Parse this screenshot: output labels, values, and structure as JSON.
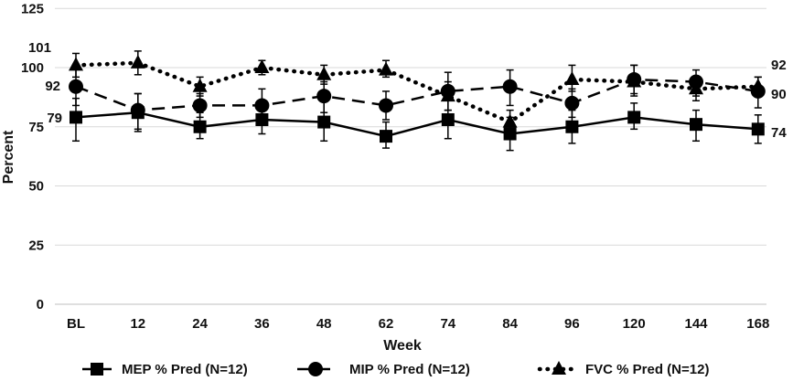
{
  "chart_data": {
    "type": "line",
    "categories": [
      "BL",
      "12",
      "24",
      "36",
      "48",
      "62",
      "74",
      "84",
      "96",
      "120",
      "144",
      "168"
    ],
    "xlabel": "Week",
    "ylabel": "Percent",
    "ylim": [
      0,
      125
    ],
    "yticks": [
      0,
      25,
      50,
      75,
      100,
      125
    ],
    "grid": true,
    "legend_position": "bottom",
    "series": [
      {
        "name": "MEP % Pred (N=12)",
        "marker": "square",
        "line_style": "solid",
        "values": [
          79,
          81,
          75,
          78,
          77,
          71,
          78,
          72,
          75,
          79,
          76,
          74
        ],
        "err_low": [
          69,
          73,
          70,
          72,
          69,
          66,
          70,
          65,
          68,
          74,
          69,
          68
        ],
        "err_high": [
          87,
          89,
          81,
          84,
          86,
          77,
          86,
          79,
          82,
          85,
          82,
          80
        ]
      },
      {
        "name": "MIP  % Pred (N=12)",
        "marker": "circle",
        "line_style": "dashed",
        "values": [
          92,
          82,
          84,
          84,
          88,
          84,
          90,
          92,
          85,
          95,
          94,
          90
        ],
        "err_low": [
          84,
          74,
          79,
          77,
          81,
          78,
          82,
          84,
          79,
          89,
          88,
          83
        ],
        "err_high": [
          100,
          89,
          89,
          91,
          94,
          90,
          98,
          99,
          91,
          101,
          99,
          96
        ]
      },
      {
        "name": "FVC % Pred (N=12)",
        "marker": "triangle",
        "line_style": "dotted",
        "values": [
          101,
          102,
          92,
          100,
          97,
          99,
          88,
          77,
          95,
          94,
          91,
          92
        ],
        "err_low": [
          96,
          97,
          88,
          97,
          93,
          96,
          82,
          72,
          90,
          88,
          86,
          88
        ],
        "err_high": [
          106,
          107,
          96,
          103,
          101,
          103,
          94,
          82,
          101,
          101,
          96,
          96
        ]
      }
    ],
    "annotations": {
      "left": [
        {
          "text": "101",
          "y": 101
        },
        {
          "text": "92",
          "y": 92
        },
        {
          "text": "79",
          "y": 79
        }
      ],
      "right": [
        {
          "text": "92",
          "y": 92
        },
        {
          "text": "90",
          "y": 90
        },
        {
          "text": "74",
          "y": 74
        }
      ]
    }
  }
}
